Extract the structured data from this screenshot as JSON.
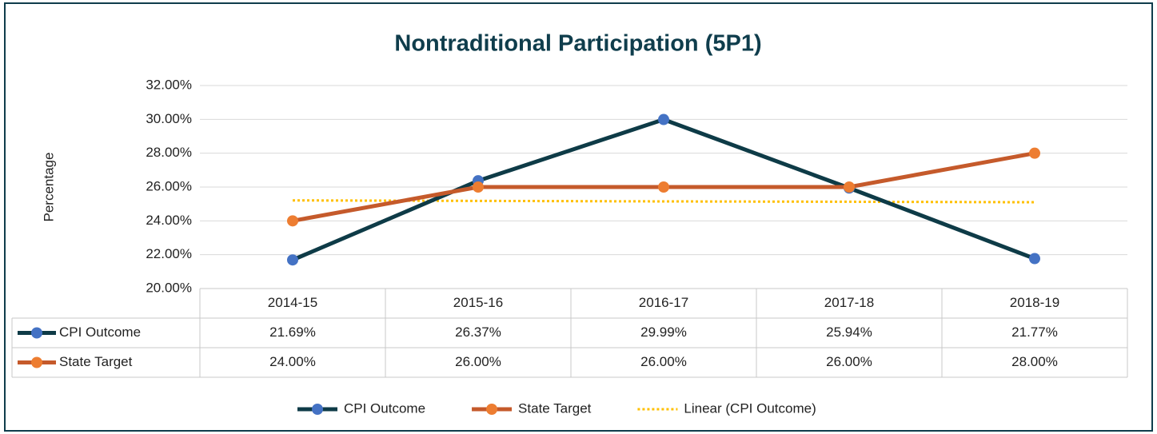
{
  "chart_data": {
    "type": "line",
    "title": "Nontraditional Participation (5P1)",
    "y_label": "Percentage",
    "categories": [
      "2014-15",
      "2015-16",
      "2016-17",
      "2017-18",
      "2018-19"
    ],
    "series": [
      {
        "name": "CPI Outcome",
        "color": "#0e3b47",
        "marker_color": "#4472c4",
        "values": [
          21.69,
          26.37,
          29.99,
          25.94,
          21.77
        ],
        "value_labels": [
          "21.69%",
          "26.37%",
          "29.99%",
          "25.94%",
          "21.77%"
        ]
      },
      {
        "name": "State Target",
        "color": "#c55a2b",
        "marker_color": "#ed7d31",
        "values": [
          24,
          26,
          26,
          26,
          28
        ],
        "value_labels": [
          "24.00%",
          "26.00%",
          "26.00%",
          "26.00%",
          "28.00%"
        ]
      },
      {
        "name": "Linear (CPI Outcome)",
        "color": "#ffc000",
        "dotted": true,
        "values": [
          25.21,
          25.18,
          25.15,
          25.13,
          25.1
        ]
      }
    ],
    "ylim": [
      20,
      32
    ],
    "yticks": [
      {
        "value": 20,
        "label": "20.00%"
      },
      {
        "value": 22,
        "label": "22.00%"
      },
      {
        "value": 24,
        "label": "24.00%"
      },
      {
        "value": 26,
        "label": "26.00%"
      },
      {
        "value": 28,
        "label": "28.00%"
      },
      {
        "value": 30,
        "label": "30.00%"
      },
      {
        "value": 32,
        "label": "32.00%"
      }
    ],
    "grid": true,
    "data_table": true,
    "legend": "bottom"
  }
}
